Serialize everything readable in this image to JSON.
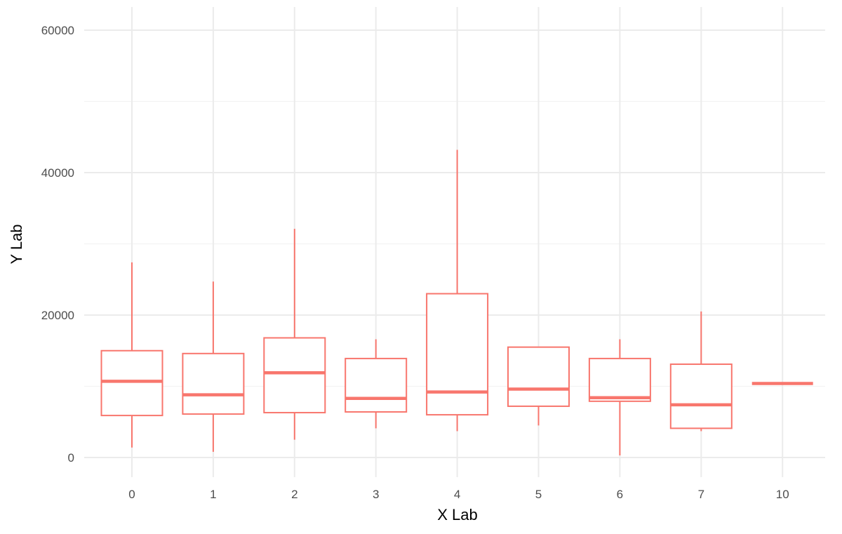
{
  "chart_data": {
    "type": "boxplot",
    "title": "",
    "xlabel": "X Lab",
    "ylabel": "Y Lab",
    "ylim": [
      -3000,
      63000
    ],
    "y_ticks": [
      0,
      20000,
      40000,
      60000
    ],
    "y_tick_labels": [
      "0",
      "20000",
      "40000",
      "60000"
    ],
    "grid": true,
    "legend": "none",
    "box_color": "#F8766D",
    "categories": [
      "0",
      "1",
      "2",
      "3",
      "4",
      "5",
      "6",
      "7",
      "10"
    ],
    "boxes": [
      {
        "category": "0",
        "min": 1400,
        "q1": 5900,
        "median": 10700,
        "q3": 15000,
        "max": 27400
      },
      {
        "category": "1",
        "min": 800,
        "q1": 6100,
        "median": 8800,
        "q3": 14600,
        "max": 24700
      },
      {
        "category": "2",
        "min": 2500,
        "q1": 6300,
        "median": 11900,
        "q3": 16800,
        "max": 32100
      },
      {
        "category": "3",
        "min": 4100,
        "q1": 6400,
        "median": 8300,
        "q3": 13900,
        "max": 16600
      },
      {
        "category": "4",
        "min": 3700,
        "q1": 6000,
        "median": 9200,
        "q3": 23000,
        "max": 43200
      },
      {
        "category": "5",
        "min": 4500,
        "q1": 7200,
        "median": 9600,
        "q3": 15500,
        "max": 15500
      },
      {
        "category": "6",
        "min": 300,
        "q1": 7900,
        "median": 8400,
        "q3": 13900,
        "max": 16600
      },
      {
        "category": "7",
        "min": 3700,
        "q1": 4100,
        "median": 7400,
        "q3": 13100,
        "max": 20500
      },
      {
        "category": "10",
        "min": 10400,
        "q1": 10400,
        "median": 10400,
        "q3": 10400,
        "max": 10400
      }
    ]
  }
}
